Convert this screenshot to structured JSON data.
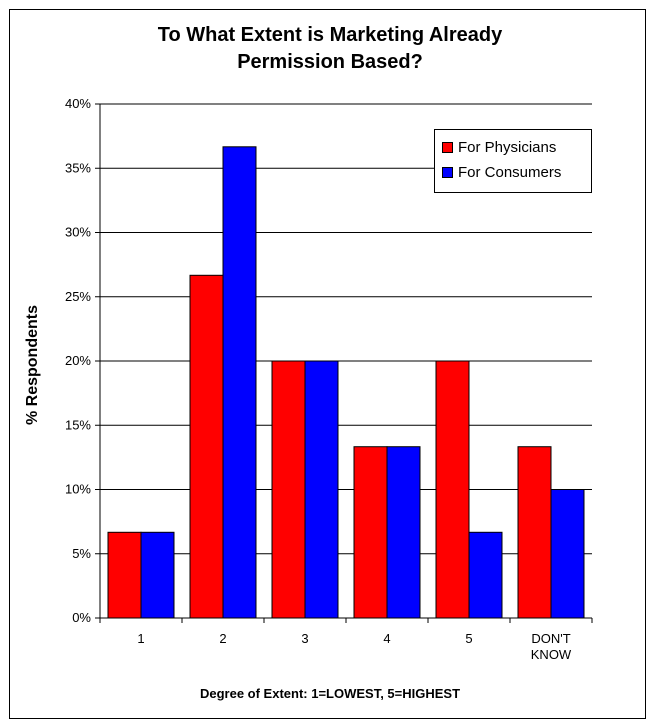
{
  "chart_data": {
    "type": "bar",
    "title": [
      "To What Extent is Marketing Already",
      "Permission Based?"
    ],
    "xlabel": "Degree of Extent: 1=LOWEST, 5=HIGHEST",
    "ylabel": "% Respondents",
    "ylim": [
      0,
      40
    ],
    "yticks": [
      "0%",
      "5%",
      "10%",
      "15%",
      "20%",
      "25%",
      "30%",
      "35%",
      "40%"
    ],
    "ytick_values": [
      0,
      5,
      10,
      15,
      20,
      25,
      30,
      35,
      40
    ],
    "categories": [
      "1",
      "2",
      "3",
      "4",
      "5",
      "DON'T KNOW"
    ],
    "category_lines": [
      [
        "1"
      ],
      [
        "2"
      ],
      [
        "3"
      ],
      [
        "4"
      ],
      [
        "5"
      ],
      [
        "DON'T",
        "KNOW"
      ]
    ],
    "series": [
      {
        "name": "For Physicians",
        "color": "#ff0000",
        "values": [
          6.67,
          26.67,
          20.0,
          13.33,
          20.0,
          13.33
        ]
      },
      {
        "name": "For Consumers",
        "color": "#0000ff",
        "values": [
          6.67,
          36.67,
          20.0,
          13.33,
          6.67,
          10.0
        ]
      }
    ],
    "grid": true,
    "legend_position": "top-right"
  }
}
